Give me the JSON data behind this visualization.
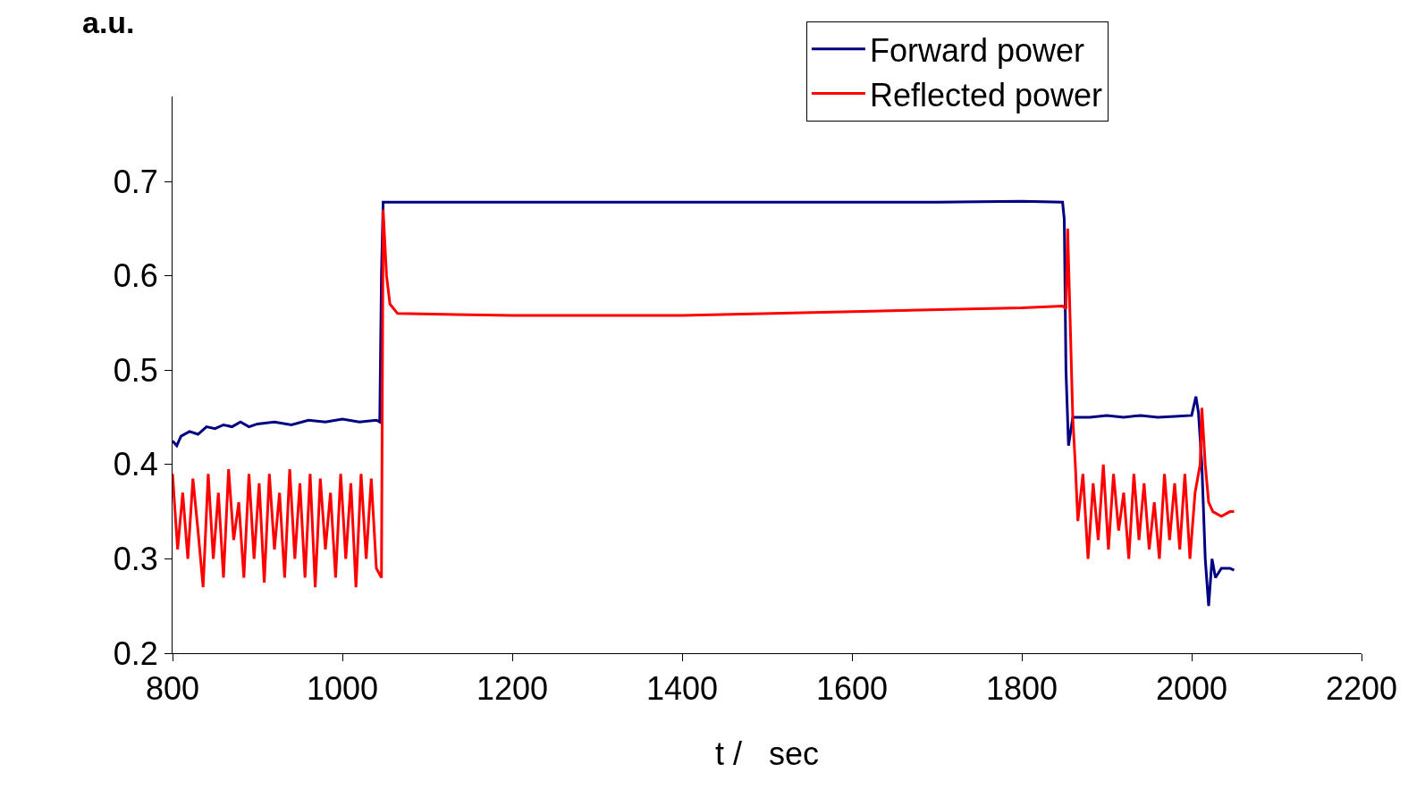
{
  "chart_data": {
    "type": "line",
    "xlabel": "t /   sec",
    "ylabel": "a.u.",
    "xlim": [
      800,
      2200
    ],
    "xticks": [
      800,
      1000,
      1200,
      1400,
      1600,
      1800,
      2000,
      2200
    ],
    "ylim": [
      0.2,
      0.79
    ],
    "yticks": [
      0.2,
      0.3,
      0.4,
      0.5,
      0.6,
      0.7
    ],
    "legend": "top right",
    "marker": "none",
    "line_style": "solid",
    "series": [
      {
        "name": "Forward power",
        "color": "#000080",
        "x": [
          800,
          805,
          810,
          820,
          830,
          840,
          850,
          860,
          870,
          880,
          890,
          900,
          920,
          940,
          960,
          980,
          1000,
          1020,
          1040,
          1044,
          1046,
          1048,
          1050,
          1100,
          1200,
          1300,
          1400,
          1500,
          1600,
          1700,
          1800,
          1848,
          1850,
          1852,
          1855,
          1860,
          1880,
          1900,
          1920,
          1940,
          1960,
          1980,
          2000,
          2005,
          2008,
          2012,
          2016,
          2020,
          2024,
          2028,
          2035,
          2045,
          2050
        ],
        "values": [
          0.425,
          0.42,
          0.43,
          0.435,
          0.432,
          0.44,
          0.438,
          0.442,
          0.44,
          0.445,
          0.44,
          0.443,
          0.445,
          0.442,
          0.447,
          0.445,
          0.448,
          0.445,
          0.447,
          0.445,
          0.6,
          0.678,
          0.678,
          0.678,
          0.678,
          0.678,
          0.678,
          0.678,
          0.678,
          0.678,
          0.679,
          0.678,
          0.66,
          0.5,
          0.42,
          0.45,
          0.45,
          0.452,
          0.45,
          0.452,
          0.45,
          0.451,
          0.452,
          0.472,
          0.455,
          0.4,
          0.3,
          0.25,
          0.3,
          0.28,
          0.29,
          0.29,
          0.288
        ]
      },
      {
        "name": "Reflected power",
        "color": "#ff0000",
        "x": [
          800,
          806,
          812,
          818,
          824,
          830,
          836,
          842,
          848,
          854,
          860,
          866,
          872,
          878,
          884,
          890,
          896,
          902,
          908,
          914,
          920,
          926,
          932,
          938,
          944,
          950,
          956,
          962,
          968,
          974,
          980,
          986,
          992,
          998,
          1004,
          1010,
          1016,
          1022,
          1028,
          1034,
          1040,
          1046,
          1048,
          1052,
          1056,
          1065,
          1200,
          1400,
          1600,
          1800,
          1848,
          1852,
          1854,
          1857,
          1860,
          1863,
          1866,
          1872,
          1878,
          1884,
          1890,
          1896,
          1902,
          1908,
          1914,
          1920,
          1926,
          1932,
          1938,
          1944,
          1950,
          1956,
          1962,
          1968,
          1974,
          1980,
          1986,
          1992,
          1998,
          2004,
          2010,
          2012,
          2016,
          2020,
          2025,
          2035,
          2045,
          2050
        ],
        "values": [
          0.39,
          0.31,
          0.37,
          0.3,
          0.385,
          0.33,
          0.27,
          0.39,
          0.3,
          0.37,
          0.28,
          0.395,
          0.32,
          0.36,
          0.28,
          0.39,
          0.3,
          0.38,
          0.275,
          0.39,
          0.31,
          0.37,
          0.28,
          0.395,
          0.3,
          0.38,
          0.28,
          0.39,
          0.27,
          0.385,
          0.31,
          0.37,
          0.28,
          0.39,
          0.3,
          0.38,
          0.27,
          0.39,
          0.3,
          0.385,
          0.29,
          0.28,
          0.67,
          0.6,
          0.57,
          0.56,
          0.558,
          0.558,
          0.562,
          0.566,
          0.568,
          0.565,
          0.65,
          0.55,
          0.45,
          0.4,
          0.34,
          0.39,
          0.3,
          0.38,
          0.32,
          0.4,
          0.31,
          0.39,
          0.33,
          0.37,
          0.3,
          0.39,
          0.32,
          0.38,
          0.31,
          0.36,
          0.3,
          0.39,
          0.32,
          0.38,
          0.31,
          0.39,
          0.3,
          0.37,
          0.4,
          0.46,
          0.4,
          0.36,
          0.35,
          0.345,
          0.35,
          0.35
        ]
      }
    ]
  }
}
